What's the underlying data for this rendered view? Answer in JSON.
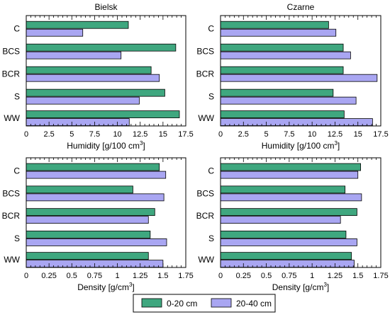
{
  "legend": [
    {
      "label": "0-20 cm",
      "color": "#3fa77f"
    },
    {
      "label": "20-40 cm",
      "color": "#a9a6f2"
    }
  ],
  "chart_data": [
    {
      "type": "bar",
      "orientation": "horizontal",
      "title": "Bielsk",
      "xlabel": "Humidity [g/100 cm",
      "xlabel_sup": "3",
      "xlabel_suffix": "]",
      "categories": [
        "C",
        "BCS",
        "BCR",
        "S",
        "WW"
      ],
      "xlim": [
        0,
        17.5
      ],
      "xticks": [
        0,
        2.5,
        5,
        7.5,
        10,
        12.5,
        15,
        17.5
      ],
      "xtick_labels": [
        "0",
        "2.5",
        "5",
        "7.5",
        "10",
        "12.5",
        "15",
        "17.5"
      ],
      "series": [
        {
          "name": "0-20 cm",
          "values": [
            11.2,
            16.4,
            13.7,
            15.2,
            16.8
          ]
        },
        {
          "name": "20-40 cm",
          "values": [
            6.2,
            10.4,
            14.6,
            12.4,
            11.3
          ]
        }
      ]
    },
    {
      "type": "bar",
      "orientation": "horizontal",
      "title": "Czarne",
      "xlabel": "Humidity [g/100 cm",
      "xlabel_sup": "3",
      "xlabel_suffix": "]",
      "categories": [
        "C",
        "BCS",
        "BCR",
        "S",
        "WW"
      ],
      "xlim": [
        0,
        17.5
      ],
      "xticks": [
        0,
        2.5,
        5,
        7.5,
        10,
        12.5,
        15,
        17.5
      ],
      "xtick_labels": [
        "0",
        "2.5",
        "5",
        "7.5",
        "10",
        "12.5",
        "15",
        "17.5"
      ],
      "series": [
        {
          "name": "0-20 cm",
          "values": [
            11.8,
            13.4,
            13.4,
            12.3,
            13.5
          ]
        },
        {
          "name": "20-40 cm",
          "values": [
            12.6,
            14.2,
            17.1,
            14.8,
            16.6
          ]
        }
      ]
    },
    {
      "type": "bar",
      "orientation": "horizontal",
      "title": "",
      "xlabel": "Density [g/cm",
      "xlabel_sup": "3",
      "xlabel_suffix": "]",
      "categories": [
        "C",
        "BCS",
        "BCR",
        "S",
        "WW"
      ],
      "xlim": [
        0,
        1.75
      ],
      "xticks": [
        0,
        0.25,
        0.5,
        0.75,
        1,
        1.25,
        1.5,
        1.75
      ],
      "xtick_labels": [
        "0",
        "0.25",
        "0.5",
        "0.75",
        "1",
        "1.25",
        "1.5",
        "1.75"
      ],
      "series": [
        {
          "name": "0-20 cm",
          "values": [
            1.46,
            1.17,
            1.41,
            1.36,
            1.34
          ]
        },
        {
          "name": "20-40 cm",
          "values": [
            1.53,
            1.51,
            1.34,
            1.54,
            1.5
          ]
        }
      ]
    },
    {
      "type": "bar",
      "orientation": "horizontal",
      "title": "",
      "xlabel": "Density [g/cm",
      "xlabel_sup": "3",
      "xlabel_suffix": "]",
      "categories": [
        "C",
        "BCS",
        "BCR",
        "S",
        "WW"
      ],
      "xlim": [
        0,
        1.75
      ],
      "xticks": [
        0,
        0.25,
        0.5,
        0.75,
        1,
        1.25,
        1.5,
        1.75
      ],
      "xtick_labels": [
        "0",
        "0.25",
        "0.5",
        "0.75",
        "1",
        "1.25",
        "1.5",
        "1.75"
      ],
      "series": [
        {
          "name": "0-20 cm",
          "values": [
            1.53,
            1.36,
            1.49,
            1.37,
            1.43
          ]
        },
        {
          "name": "20-40 cm",
          "values": [
            1.5,
            1.54,
            1.31,
            1.49,
            1.46
          ]
        }
      ]
    }
  ]
}
